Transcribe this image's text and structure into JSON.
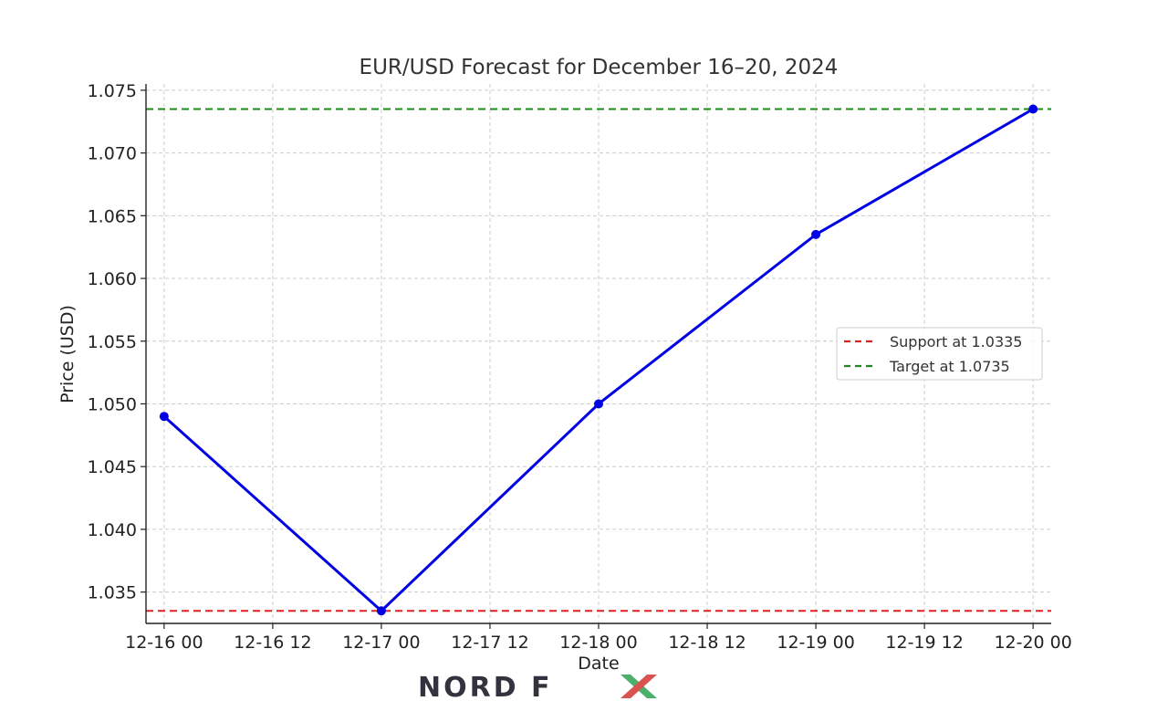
{
  "chart_data": {
    "type": "line",
    "title": "EUR/USD Forecast for December 16–20, 2024",
    "xlabel": "Date",
    "ylabel": "Price (USD)",
    "x_ticks": [
      "12-16 00",
      "12-16 12",
      "12-17 00",
      "12-17 12",
      "12-18 00",
      "12-18 12",
      "12-19 00",
      "12-19 12",
      "12-20 00"
    ],
    "y_ticks": [
      "1.035",
      "1.040",
      "1.045",
      "1.050",
      "1.055",
      "1.060",
      "1.065",
      "1.070",
      "1.075"
    ],
    "ylim": [
      1.0325,
      1.0755
    ],
    "xlim": [
      "2024-12-15 22:00",
      "2024-12-20 02:00"
    ],
    "grid": true,
    "series": [
      {
        "values_x": [
          "2024-12-16 00:00",
          "2024-12-17 00:00",
          "2024-12-18 00:00",
          "2024-12-19 00:00",
          "2024-12-20 00:00"
        ],
        "values_y": [
          1.049,
          1.0335,
          1.05,
          1.0635,
          1.0735
        ],
        "color": "#0000e6",
        "marker": "circle"
      }
    ],
    "reference_lines": [
      {
        "name": "Support at 1.0335",
        "y": 1.0335,
        "color": "#e02020",
        "style": "dashed"
      },
      {
        "name": "Target at 1.0735",
        "y": 1.0735,
        "color": "#1a8a1a",
        "style": "dashed"
      }
    ],
    "legend": {
      "placement": "center-right",
      "entries": [
        "Support at 1.0335",
        "Target at 1.0735"
      ]
    }
  },
  "branding": {
    "logo_text": "NORD FX",
    "colors": {
      "nord": "#333340",
      "x_green": "#4caf6a",
      "x_red": "#d9534f"
    }
  }
}
